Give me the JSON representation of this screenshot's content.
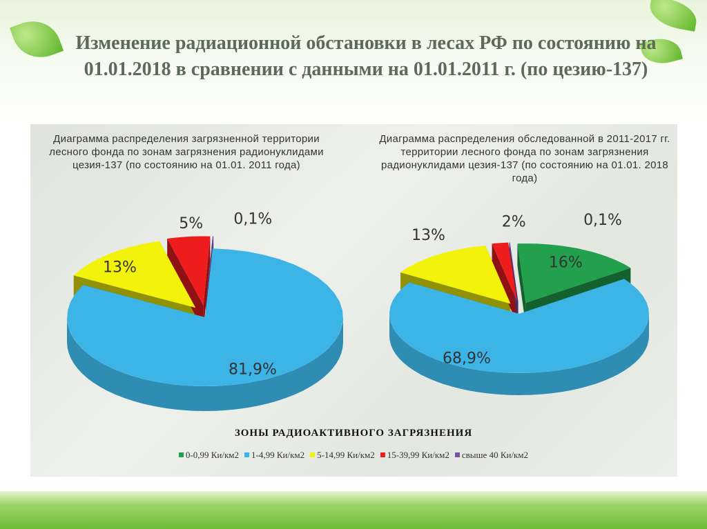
{
  "title": "Изменение радиационной обстановки в лесах РФ по состоянию на 01.01.2018 в сравнении с данными на 01.01.2011 г. (по цезию-137)",
  "colors": {
    "green": "#22a04e",
    "blue": "#3cb4e6",
    "yellow": "#f2f20a",
    "red": "#ee1c1c",
    "purple": "#7a4fa8"
  },
  "chart_data": [
    {
      "type": "pie",
      "title": "Диаграмма распределения загрязненной территории лесного фонда по зонам загрязнения радионуклидами цезия-137 (по состоянию на 01.01. 2011 года)",
      "slices": [
        {
          "category": "5-14,99 Ки/км2",
          "value": 13,
          "label": "13%",
          "color": "#f2f20a"
        },
        {
          "category": "15-39,99 Ки/км2",
          "value": 5,
          "label": "5%",
          "color": "#ee1c1c"
        },
        {
          "category": "свыше 40 Ки/км2",
          "value": 0.1,
          "label": "0,1%",
          "color": "#7a4fa8"
        },
        {
          "category": "1-4,99 Ки/км2",
          "value": 81.9,
          "label": "81,9%",
          "color": "#3cb4e6"
        }
      ]
    },
    {
      "type": "pie",
      "title": "Диаграмма распределения обследованной в 2011-2017 гг. территории лесного фонда по зонам загрязнения радионуклидами цезия-137 (по состоянию на 01.01. 2018 года)",
      "slices": [
        {
          "category": "5-14,99 Ки/км2",
          "value": 13,
          "label": "13%",
          "color": "#f2f20a"
        },
        {
          "category": "15-39,99 Ки/км2",
          "value": 2,
          "label": "2%",
          "color": "#ee1c1c"
        },
        {
          "category": "свыше 40 Ки/км2",
          "value": 0.1,
          "label": "0,1%",
          "color": "#7a4fa8"
        },
        {
          "category": "0-0,99 Ки/км2",
          "value": 16,
          "label": "16%",
          "color": "#22a04e"
        },
        {
          "category": "1-4,99 Ки/км2",
          "value": 68.9,
          "label": "68,9%",
          "color": "#3cb4e6"
        }
      ]
    }
  ],
  "legend": {
    "title": "ЗОНЫ РАДИОАКТИВНОГО ЗАГРЯЗНЕНИЯ",
    "position": "bottom",
    "items": [
      {
        "label": "0-0,99 Ки/км2",
        "color": "#22a04e"
      },
      {
        "label": "1-4,99 Ки/км2",
        "color": "#3cb4e6"
      },
      {
        "label": "5-14,99 Ки/км2",
        "color": "#f2f20a"
      },
      {
        "label": "15-39,99 Ки/км2",
        "color": "#ee1c1c"
      },
      {
        "label": "свыше 40 Ки/км2",
        "color": "#7a4fa8"
      }
    ]
  }
}
